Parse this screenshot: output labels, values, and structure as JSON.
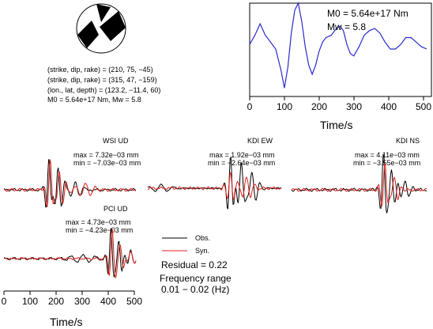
{
  "colors": {
    "obs": "#000000",
    "syn": "#e0201b",
    "stf": "#2a2ad0"
  },
  "source": {
    "np1": "(strike, dip, rake) = (210, 75, −45)",
    "np2": "(strike, dip, rake) = (315, 47, −159)",
    "loc": "(lon., lat, depth) = (123.2, −11.4, 60)",
    "moment": "M0 = 5.64e+17 Nm, Mw = 5.8"
  },
  "stf": {
    "m0": "M0 = 5.64e+17 Nm",
    "mw": "Mw = 5.8",
    "xlabel": "Time/s",
    "ticks": [
      "0",
      "100",
      "200",
      "300",
      "400",
      "500"
    ]
  },
  "stations": [
    {
      "name": "WSI UD",
      "max": "max = 7.32e−03 mm",
      "min": "min = −7.03e−03 mm"
    },
    {
      "name": "KDI EW",
      "max": "max = 1.92e−03 mm",
      "min": "min = −2.64e−03 mm"
    },
    {
      "name": "KDI NS",
      "max": "max = 4.11e−03 mm",
      "min": "min = −3.55e−03 mm"
    },
    {
      "name": "PCI UD",
      "max": "max = 4.73e−03 mm",
      "min": "min = −4.23e−03 mm"
    }
  ],
  "legend": {
    "obs": "Obs.",
    "syn": "Syn."
  },
  "residual": "Residual = 0.22",
  "freq_label": "Frequency range",
  "freq_value": "0.01 − 0.02 (Hz)",
  "bottom_axis": {
    "xlabel": "Time/s",
    "ticks": [
      "0",
      "100",
      "200",
      "300",
      "400",
      "500"
    ]
  },
  "chart_data": [
    {
      "type": "line",
      "title": "",
      "xlabel": "Time/s",
      "ylabel": "",
      "xlim": [
        0,
        510
      ],
      "series": [
        {
          "x": [
            0,
            15,
            30,
            45,
            60,
            75,
            90,
            100,
            110,
            120,
            130,
            140,
            150,
            160,
            170,
            180,
            190,
            200,
            210,
            220,
            235,
            250,
            260,
            270,
            280,
            290,
            300,
            315,
            330,
            345,
            360,
            375,
            390,
            405,
            420,
            435,
            450,
            465,
            480,
            495,
            510
          ],
          "y": [
            0.1,
            0.3,
            0.55,
            0.3,
            0.15,
            0.0,
            -0.45,
            -0.85,
            -0.4,
            0.35,
            0.85,
            1.0,
            0.6,
            0.05,
            -0.35,
            -0.55,
            -0.35,
            -0.05,
            0.15,
            0.25,
            0.3,
            0.45,
            0.5,
            0.4,
            0.1,
            -0.1,
            -0.15,
            0.05,
            0.3,
            0.4,
            0.45,
            0.35,
            0.15,
            0.0,
            0.0,
            0.1,
            0.25,
            0.25,
            0.15,
            0.05,
            0.0
          ]
        }
      ]
    }
  ]
}
